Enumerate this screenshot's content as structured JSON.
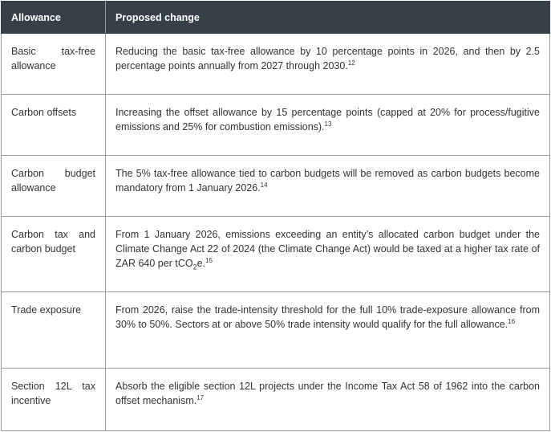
{
  "table": {
    "headers": [
      "Allowance",
      "Proposed change"
    ],
    "rows": [
      {
        "allowance": "Basic tax-free allowance",
        "change": "Reducing the basic tax-free allowance by 10 percentage points in 2026, and then by 2.5 percentage points annually from 2027 through 2030.",
        "note": "12"
      },
      {
        "allowance": "Carbon offsets",
        "change": "Increasing the offset allowance by 15 percentage points (capped at 20% for process/fugitive emissions and 25% for combustion emissions).",
        "note": "13"
      },
      {
        "allowance": "Carbon budget allowance",
        "change": "The 5% tax-free allowance tied to carbon budgets will be removed as carbon budgets become mandatory from 1 January 2026.",
        "note": "14"
      },
      {
        "allowance": "Carbon tax and carbon budget",
        "change_before": "From 1 January 2026, emissions exceeding an entity’s allocated carbon budget under the Climate Change Act 22 of 2024 (the Climate Change Act) would be taxed at a higher tax rate of ZAR 640 per tCO",
        "change_sub": "2",
        "change_after": "e.",
        "note": "15"
      },
      {
        "allowance": "Trade exposure",
        "change": "From 2026, raise the trade-intensity threshold for the full 10% trade-exposure allowance from 30% to 50%. Sectors at or above 50% trade intensity would qualify for the full allowance.",
        "note": "16"
      },
      {
        "allowance": "Section 12L tax incentive",
        "change": "Absorb the eligible section 12L projects under the Income Tax Act 58 of 1962 into the carbon offset mechanism.",
        "note": "17"
      }
    ]
  }
}
